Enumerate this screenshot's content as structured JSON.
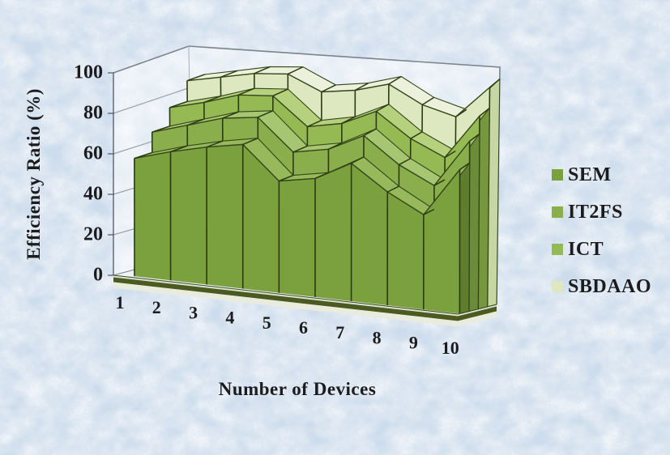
{
  "background": {
    "base_color": "#cddcec",
    "texture": "mottled-scanned-paper-blue"
  },
  "chart_data": {
    "type": "area3d",
    "title": "",
    "xlabel": "Number of Devices",
    "ylabel": "Efficiency Ratio (%)",
    "categories": [
      "1",
      "2",
      "3",
      "4",
      "5",
      "6",
      "7",
      "8",
      "9",
      "10"
    ],
    "yticks": [
      0,
      20,
      40,
      60,
      80,
      100
    ],
    "ylim": [
      0,
      100
    ],
    "grid": true,
    "legend_position": "right",
    "series": [
      {
        "name": "SEM",
        "color": "#7ba03e",
        "top_color": "#97b95c",
        "side_color": "#5f7d2f",
        "values": [
          58,
          63,
          67,
          70,
          54,
          57,
          66,
          54,
          45,
          68
        ]
      },
      {
        "name": "IT2FS",
        "color": "#89ae4b",
        "top_color": "#a7c671",
        "side_color": "#6b8c38",
        "values": [
          68,
          73,
          78,
          80,
          65,
          68,
          76,
          64,
          56,
          78
        ]
      },
      {
        "name": "ICT",
        "color": "#95ba53",
        "top_color": "#b6d17e",
        "side_color": "#77973f",
        "values": [
          77,
          81,
          86,
          87,
          74,
          77,
          84,
          73,
          66,
          86
        ]
      },
      {
        "name": "SBDAAO",
        "color": "#dde8c0",
        "top_color": "#ebf1da",
        "side_color": "#c7d7a4",
        "values": [
          87,
          90,
          93,
          94,
          87,
          89,
          93,
          85,
          81,
          95
        ]
      }
    ],
    "colors": {
      "divider": "#2c3b12",
      "outline": "#35461a",
      "grid": "#9aa2ab",
      "frame": "#7b838c",
      "axis_line": "#6b7380",
      "text": "#1c1c1e",
      "wall_fill": "rgba(255,255,255,0.45)",
      "floor_band_light": "#e9ecdc",
      "floor_band_dark": "#4a5a20",
      "floor_band_mid": "#dce3cf"
    }
  }
}
